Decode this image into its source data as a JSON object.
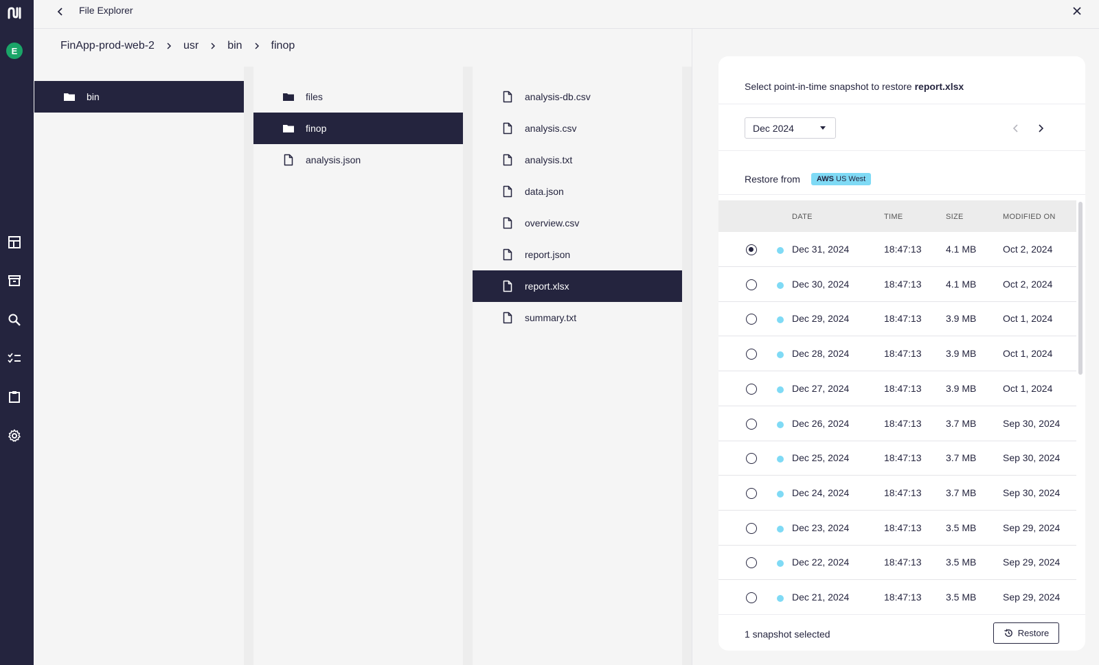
{
  "app": {
    "title": "File Explorer",
    "user_initial": "E",
    "nav_icons": [
      "layout-icon",
      "archive-icon",
      "search-icon",
      "tasks-icon",
      "clipboard-icon",
      "settings-icon"
    ]
  },
  "breadcrumb": [
    "FinApp-prod-web-2",
    "usr",
    "bin",
    "finop"
  ],
  "columns": [
    {
      "items": [
        {
          "name": "bin",
          "type": "folder",
          "selected": true
        }
      ]
    },
    {
      "items": [
        {
          "name": "files",
          "type": "folder",
          "selected": false
        },
        {
          "name": "finop",
          "type": "folder",
          "selected": true
        },
        {
          "name": "analysis.json",
          "type": "file",
          "selected": false
        }
      ]
    },
    {
      "items": [
        {
          "name": "analysis-db.csv",
          "type": "file",
          "selected": false
        },
        {
          "name": "analysis.csv",
          "type": "file",
          "selected": false
        },
        {
          "name": "analysis.txt",
          "type": "file",
          "selected": false
        },
        {
          "name": "data.json",
          "type": "file",
          "selected": false
        },
        {
          "name": "overview.csv",
          "type": "file",
          "selected": false
        },
        {
          "name": "report.json",
          "type": "file",
          "selected": false
        },
        {
          "name": "report.xlsx",
          "type": "file",
          "selected": true
        },
        {
          "name": "summary.txt",
          "type": "file",
          "selected": false
        }
      ]
    }
  ],
  "panel": {
    "heading": "Select point-in-time snapshot to restore",
    "file": "report.xlsx",
    "month": "Dec 2024",
    "restore_from_label": "Restore from",
    "badge_bold": "AWS",
    "badge_text": "US West",
    "headers": {
      "date": "DATE",
      "time": "TIME",
      "size": "SIZE",
      "modified": "MODIFIED ON"
    },
    "dot_color": "#7fdaf5",
    "rows": [
      {
        "date": "Dec 31, 2024",
        "time": "18:47:13",
        "size": "4.1 MB",
        "modified": "Oct 2, 2024",
        "selected": true
      },
      {
        "date": "Dec 30, 2024",
        "time": "18:47:13",
        "size": "4.1 MB",
        "modified": "Oct 2, 2024",
        "selected": false
      },
      {
        "date": "Dec 29, 2024",
        "time": "18:47:13",
        "size": "3.9 MB",
        "modified": "Oct 1, 2024",
        "selected": false
      },
      {
        "date": "Dec 28, 2024",
        "time": "18:47:13",
        "size": "3.9 MB",
        "modified": "Oct 1, 2024",
        "selected": false
      },
      {
        "date": "Dec 27, 2024",
        "time": "18:47:13",
        "size": "3.9 MB",
        "modified": "Oct 1, 2024",
        "selected": false
      },
      {
        "date": "Dec 26, 2024",
        "time": "18:47:13",
        "size": "3.7 MB",
        "modified": "Sep 30, 2024",
        "selected": false
      },
      {
        "date": "Dec 25, 2024",
        "time": "18:47:13",
        "size": "3.7 MB",
        "modified": "Sep 30, 2024",
        "selected": false
      },
      {
        "date": "Dec 24, 2024",
        "time": "18:47:13",
        "size": "3.7 MB",
        "modified": "Sep 30, 2024",
        "selected": false
      },
      {
        "date": "Dec 23, 2024",
        "time": "18:47:13",
        "size": "3.5 MB",
        "modified": "Sep 29, 2024",
        "selected": false
      },
      {
        "date": "Dec 22, 2024",
        "time": "18:47:13",
        "size": "3.5 MB",
        "modified": "Sep 29, 2024",
        "selected": false
      },
      {
        "date": "Dec 21, 2024",
        "time": "18:47:13",
        "size": "3.5 MB",
        "modified": "Sep 29, 2024",
        "selected": false
      }
    ],
    "selected_count": "1 snapshot selected",
    "restore_label": "Restore"
  }
}
